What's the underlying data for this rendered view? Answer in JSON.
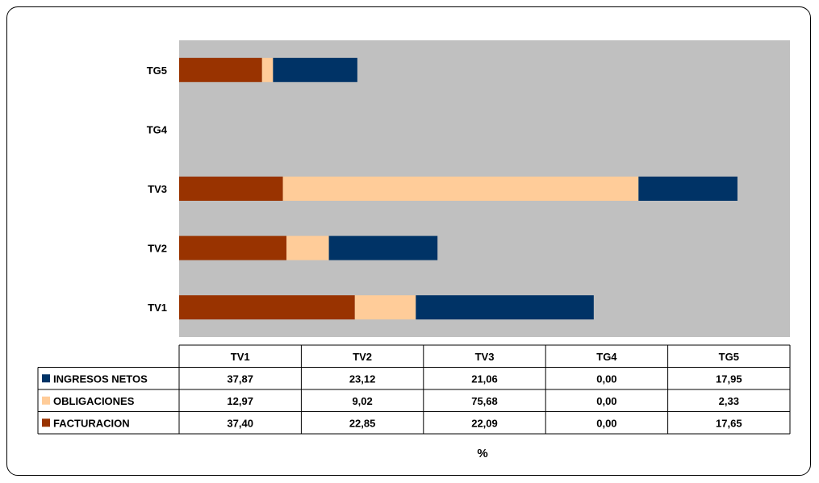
{
  "chart_data": {
    "type": "bar",
    "orientation": "horizontal",
    "stacked": true,
    "categories": [
      "TV1",
      "TV2",
      "TV3",
      "TG4",
      "TG5"
    ],
    "series": [
      {
        "name": "FACTURACION",
        "color": "#993300",
        "values": [
          "37,40",
          "22,85",
          "22,09",
          "0,00",
          "17,65"
        ]
      },
      {
        "name": "OBLIGACIONES",
        "color": "#FFCC99",
        "values": [
          "12,97",
          "9,02",
          "75,68",
          "0,00",
          "2,33"
        ]
      },
      {
        "name": "INGRESOS NETOS",
        "color": "#003366",
        "values": [
          "37,87",
          "23,12",
          "21,06",
          "0,00",
          "17,95"
        ]
      }
    ],
    "table_order": [
      "INGRESOS NETOS",
      "OBLIGACIONES",
      "FACTURACION"
    ],
    "xlabel": "%",
    "xlim": [
      0,
      130
    ],
    "plot_background": "#C0C0C0",
    "grid": false,
    "legend": "data-table"
  }
}
